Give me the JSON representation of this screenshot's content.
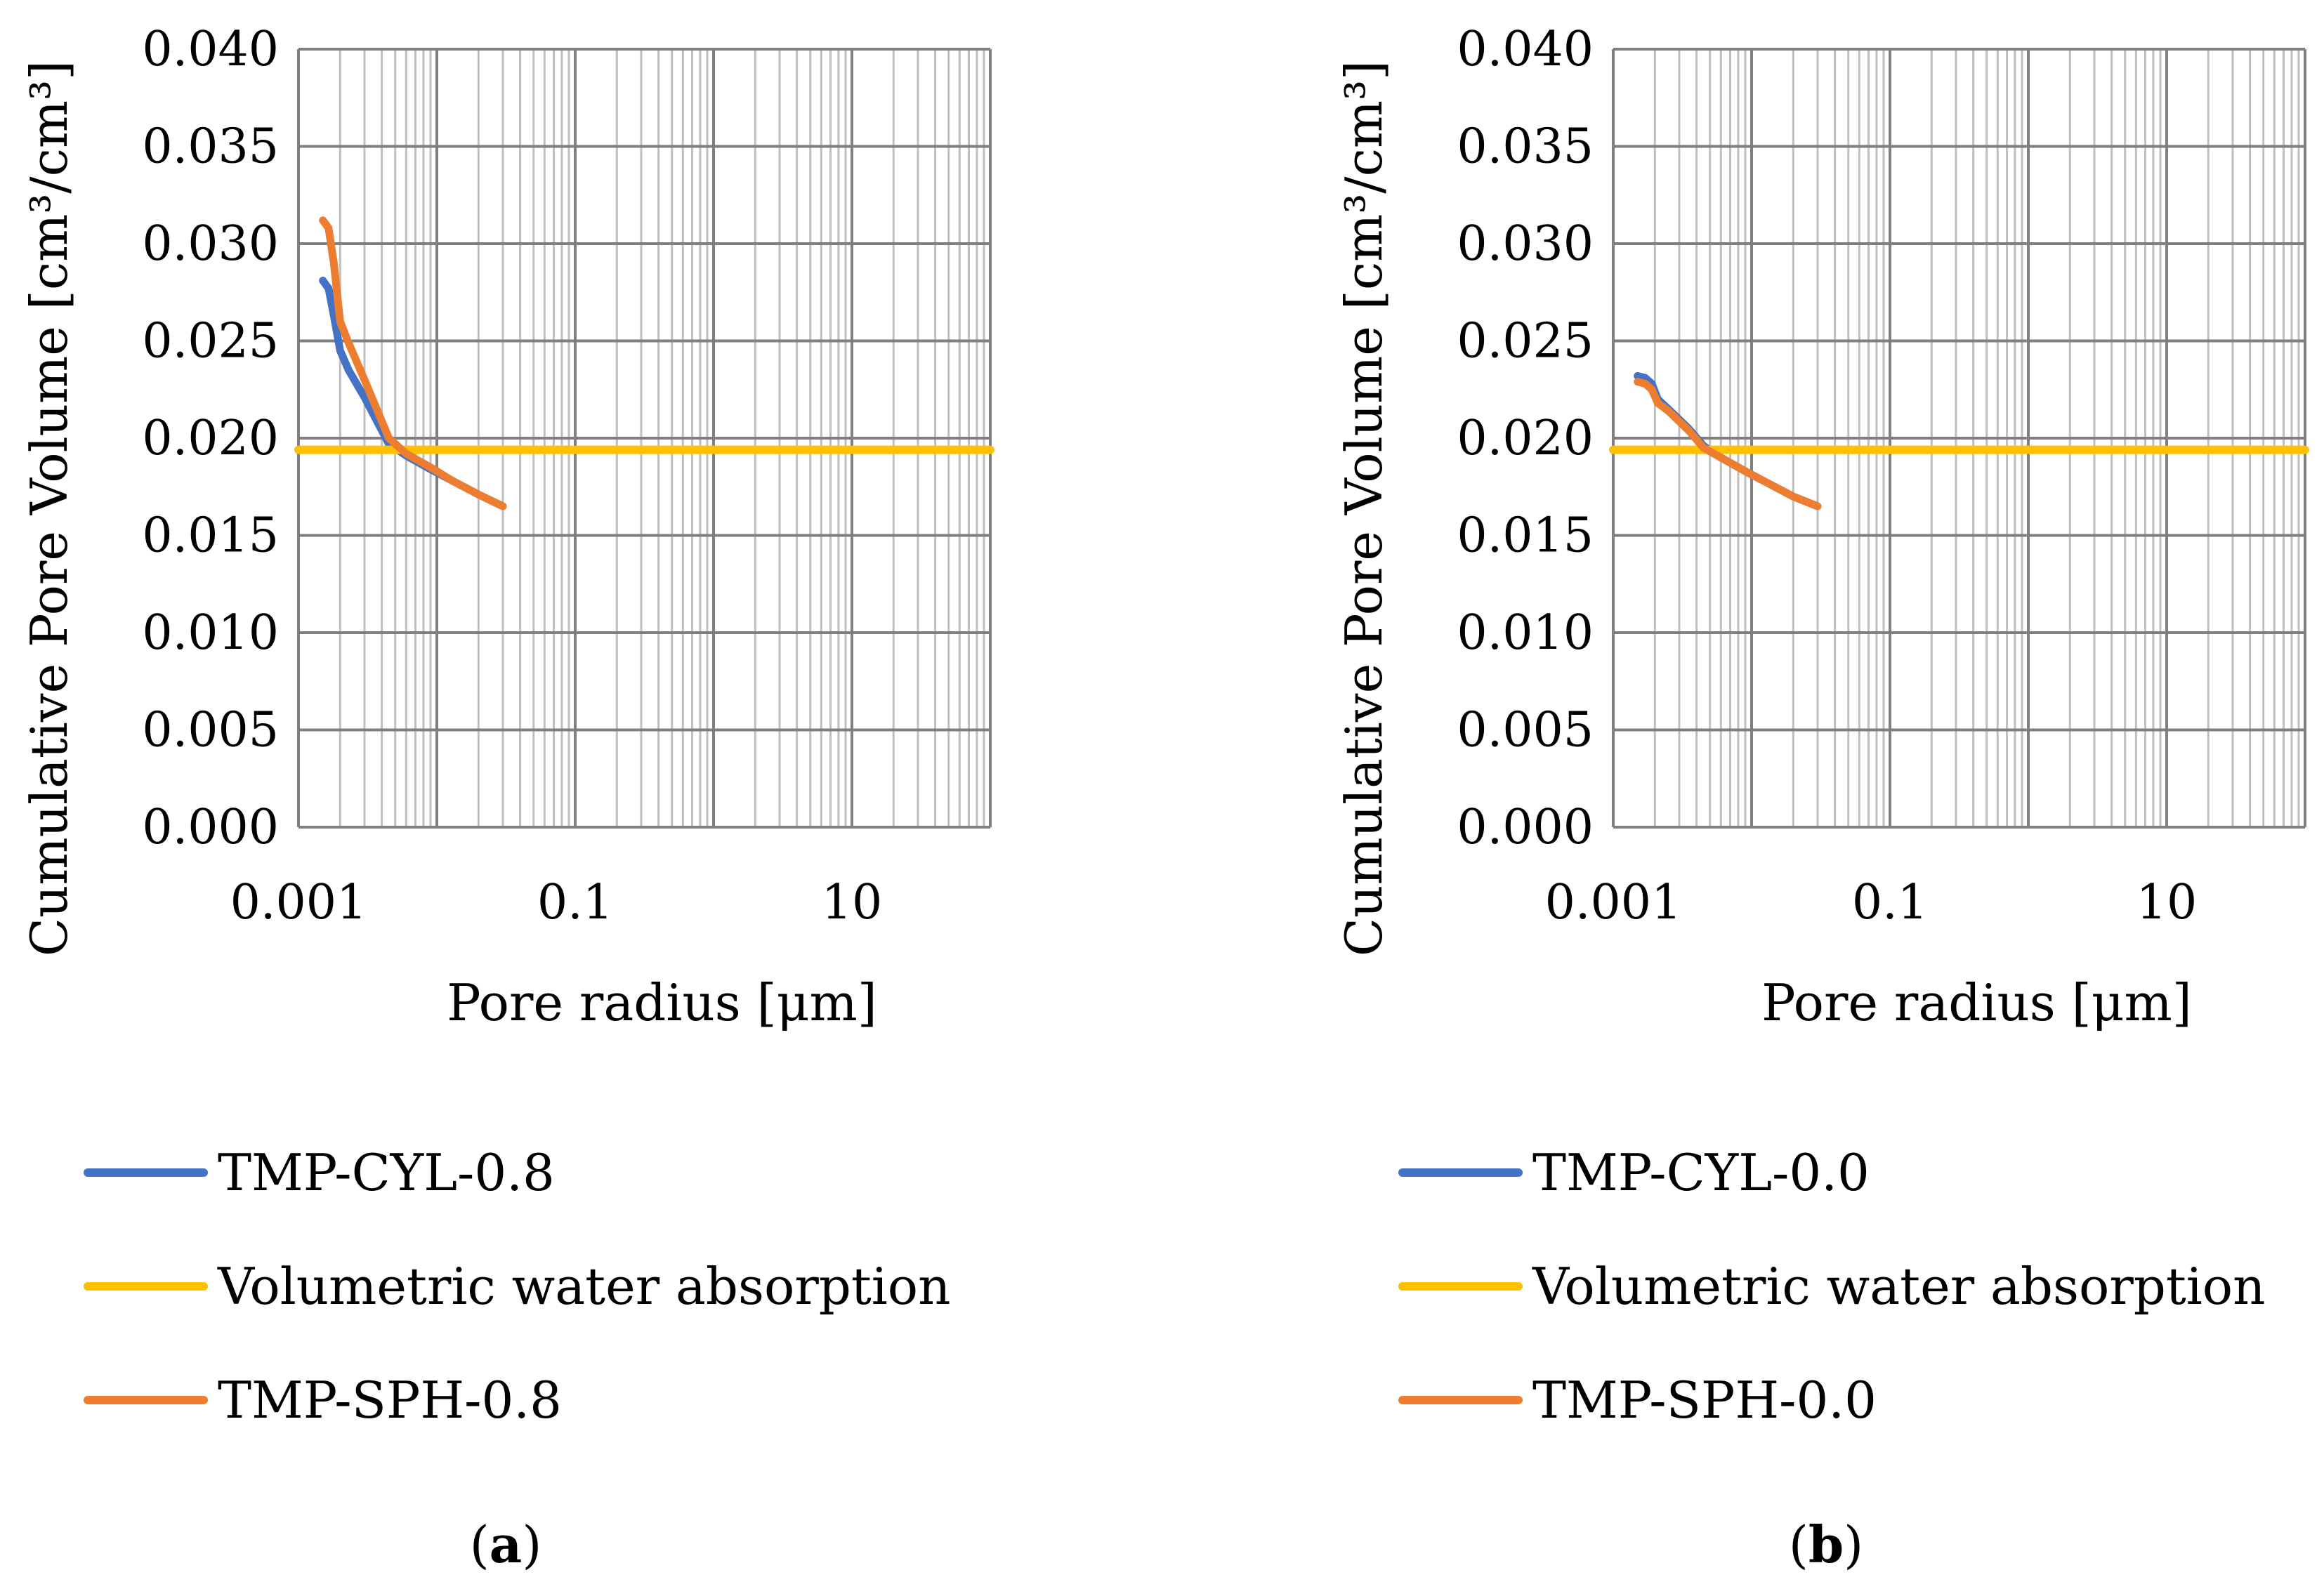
{
  "chart_data": [
    {
      "type": "line",
      "panel_label": "a",
      "xlabel": "Pore radius [μm]",
      "ylabel": "Cumulative Pore Volume [cm³/cm³]",
      "xscale": "log",
      "xlim": [
        0.001,
        100
      ],
      "ylim": [
        0.0,
        0.04
      ],
      "xticks": [
        0.001,
        0.1,
        10
      ],
      "xtick_labels": [
        "0.001",
        "0.1",
        "10"
      ],
      "yticks": [
        0.0,
        0.005,
        0.01,
        0.015,
        0.02,
        0.025,
        0.03,
        0.035,
        0.04
      ],
      "ytick_labels": [
        "0.000",
        "0.005",
        "0.010",
        "0.015",
        "0.020",
        "0.025",
        "0.030",
        "0.035",
        "0.040"
      ],
      "grid": true,
      "legend_position": "below",
      "series": [
        {
          "name": "TMP-CYL-0.8",
          "color": "#4472C4",
          "x": [
            0.0015,
            0.00165,
            0.0018,
            0.002,
            0.0023,
            0.003,
            0.0045,
            0.006,
            0.009,
            0.013,
            0.02,
            0.03
          ],
          "y": [
            0.0281,
            0.0277,
            0.0263,
            0.0245,
            0.0235,
            0.0221,
            0.0197,
            0.0191,
            0.0184,
            0.0178,
            0.0171,
            0.0165
          ]
        },
        {
          "name": "Volumetric water absorption",
          "color": "#FFC000",
          "x": [
            0.001,
            100
          ],
          "y": [
            0.0194,
            0.0194
          ]
        },
        {
          "name": "TMP-SPH-0.8",
          "color": "#ED7D31",
          "x": [
            0.0015,
            0.00165,
            0.0018,
            0.002,
            0.0023,
            0.003,
            0.0045,
            0.006,
            0.009,
            0.013,
            0.02,
            0.03
          ],
          "y": [
            0.0312,
            0.0308,
            0.029,
            0.026,
            0.0249,
            0.023,
            0.02,
            0.0192,
            0.0185,
            0.0178,
            0.0171,
            0.0165
          ]
        }
      ]
    },
    {
      "type": "line",
      "panel_label": "b",
      "xlabel": "Pore radius [μm]",
      "ylabel": "Cumulative Pore Volume [cm³/cm³]",
      "xscale": "log",
      "xlim": [
        0.001,
        100
      ],
      "ylim": [
        0.0,
        0.04
      ],
      "xticks": [
        0.001,
        0.1,
        10
      ],
      "xtick_labels": [
        "0.001",
        "0.1",
        "10"
      ],
      "yticks": [
        0.0,
        0.005,
        0.01,
        0.015,
        0.02,
        0.025,
        0.03,
        0.035,
        0.04
      ],
      "ytick_labels": [
        "0.000",
        "0.005",
        "0.010",
        "0.015",
        "0.020",
        "0.025",
        "0.030",
        "0.035",
        "0.040"
      ],
      "grid": true,
      "legend_position": "below",
      "series": [
        {
          "name": "TMP-CYL-0.0",
          "color": "#4472C4",
          "x": [
            0.0015,
            0.0017,
            0.0019,
            0.0021,
            0.0025,
            0.0035,
            0.0045,
            0.006,
            0.009,
            0.013,
            0.02,
            0.03
          ],
          "y": [
            0.0232,
            0.0231,
            0.0228,
            0.022,
            0.0215,
            0.0205,
            0.0196,
            0.019,
            0.0183,
            0.0177,
            0.017,
            0.0165
          ]
        },
        {
          "name": "Volumetric water absorption",
          "color": "#FFC000",
          "x": [
            0.001,
            100
          ],
          "y": [
            0.0194,
            0.0194
          ]
        },
        {
          "name": "TMP-SPH-0.0",
          "color": "#ED7D31",
          "x": [
            0.0015,
            0.0017,
            0.0019,
            0.0021,
            0.0025,
            0.0035,
            0.0045,
            0.006,
            0.009,
            0.013,
            0.02,
            0.03
          ],
          "y": [
            0.0229,
            0.0228,
            0.0225,
            0.0218,
            0.0214,
            0.0204,
            0.0195,
            0.019,
            0.0183,
            0.0177,
            0.017,
            0.0165
          ]
        }
      ]
    }
  ]
}
